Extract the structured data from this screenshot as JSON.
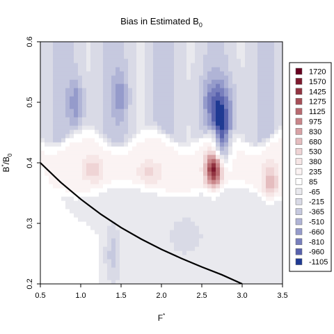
{
  "chart_data": {
    "type": "heatmap",
    "title_text": "Bias in Estimated B",
    "title_sub": "0",
    "xlabel_main": "F",
    "xlabel_sup": "*",
    "ylabel_main": "B",
    "ylabel_sup": "*",
    "ylabel_mid": "/B",
    "ylabel_sub": "0",
    "xlim": [
      0.5,
      3.5
    ],
    "ylim": [
      0.2,
      0.6
    ],
    "x_ticks": [
      0.5,
      1.0,
      1.5,
      2.0,
      2.5,
      3.0,
      3.5
    ],
    "x_tick_labels": [
      "0.5",
      "1.0",
      "1.5",
      "2.0",
      "2.5",
      "3.0",
      "3.5"
    ],
    "y_ticks": [
      0.2,
      0.3,
      0.4,
      0.5,
      0.6
    ],
    "y_tick_labels": [
      "0.2",
      "0.3",
      "0.4",
      "0.5",
      "0.6"
    ],
    "legend_position": "right",
    "legend": [
      {
        "label": "1720",
        "color": "#67001f"
      },
      {
        "label": "1570",
        "color": "#7d1a2e"
      },
      {
        "label": "1425",
        "color": "#923441"
      },
      {
        "label": "1275",
        "color": "#a64f57"
      },
      {
        "label": "1125",
        "color": "#b86a70"
      },
      {
        "label": "975",
        "color": "#c9868a"
      },
      {
        "label": "830",
        "color": "#d8a2a5"
      },
      {
        "label": "680",
        "color": "#e5bdbf"
      },
      {
        "label": "530",
        "color": "#efd4d5"
      },
      {
        "label": "380",
        "color": "#f6e6e6"
      },
      {
        "label": "235",
        "color": "#fbf3f3"
      },
      {
        "label": "85",
        "color": "#ffffff"
      },
      {
        "label": "-65",
        "color": "#e9e9ee"
      },
      {
        "label": "-215",
        "color": "#d9dae6"
      },
      {
        "label": "-365",
        "color": "#c6c9df"
      },
      {
        "label": "-510",
        "color": "#b0b4d6"
      },
      {
        "label": "-660",
        "color": "#959bcb"
      },
      {
        "label": "-810",
        "color": "#787fbd"
      },
      {
        "label": "-960",
        "color": "#5862ad"
      },
      {
        "label": "-1105",
        "color": "#1f3a93"
      }
    ],
    "curve": {
      "description_free": true,
      "points": [
        [
          0.5,
          0.4
        ],
        [
          0.75,
          0.368
        ],
        [
          1.0,
          0.34
        ],
        [
          1.25,
          0.315
        ],
        [
          1.5,
          0.293
        ],
        [
          1.75,
          0.274
        ],
        [
          2.0,
          0.257
        ],
        [
          2.25,
          0.242
        ],
        [
          2.5,
          0.228
        ],
        [
          2.75,
          0.215
        ],
        [
          3.0,
          0.2
        ]
      ],
      "color": "#000000"
    },
    "bias_field": {
      "baseline_above_0.45": -250,
      "baseline_0.35_to_0.45": 200,
      "baseline_below_0.35": -80,
      "features": [
        {
          "x": 2.65,
          "y": 0.39,
          "value": 1400,
          "sx": 0.1,
          "sy": 0.03
        },
        {
          "x": 2.75,
          "y": 0.44,
          "value": -1000,
          "sx": 0.1,
          "sy": 0.04
        },
        {
          "x": 2.7,
          "y": 0.5,
          "value": -600,
          "sx": 0.2,
          "sy": 0.04
        },
        {
          "x": 0.95,
          "y": 0.5,
          "value": -450,
          "sx": 0.1,
          "sy": 0.04
        },
        {
          "x": 1.5,
          "y": 0.51,
          "value": -350,
          "sx": 0.1,
          "sy": 0.04
        },
        {
          "x": 1.15,
          "y": 0.39,
          "value": 400,
          "sx": 0.12,
          "sy": 0.02
        },
        {
          "x": 1.85,
          "y": 0.385,
          "value": 300,
          "sx": 0.15,
          "sy": 0.02
        },
        {
          "x": 3.35,
          "y": 0.37,
          "value": 500,
          "sx": 0.1,
          "sy": 0.03
        },
        {
          "x": 1.4,
          "y": 0.25,
          "value": -300,
          "sx": 0.08,
          "sy": 0.04
        },
        {
          "x": 2.3,
          "y": 0.28,
          "value": -150,
          "sx": 0.2,
          "sy": 0.03
        }
      ]
    }
  }
}
